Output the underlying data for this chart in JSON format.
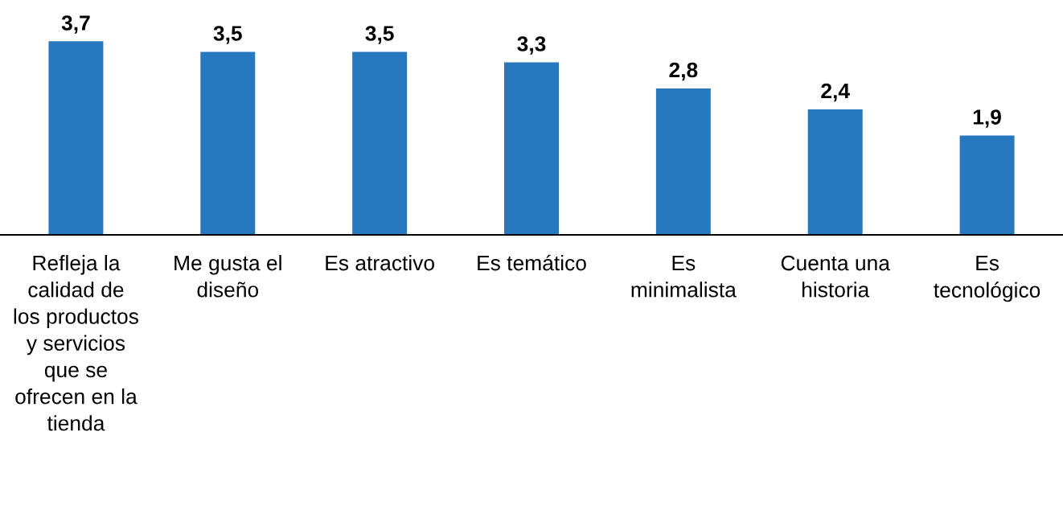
{
  "chart_data": {
    "type": "bar",
    "categories": [
      "Refleja la calidad de los productos y servicios que se ofrecen en la tienda",
      "Me gusta el diseño",
      "Es atractivo",
      "Es temático",
      "Es minimalista",
      "Cuenta una historia",
      "Es tecnológico"
    ],
    "values": [
      3.7,
      3.5,
      3.5,
      3.3,
      2.8,
      2.4,
      1.9
    ],
    "value_labels": [
      "3,7",
      "3,5",
      "3,5",
      "3,3",
      "2,8",
      "2,4",
      "1,9"
    ],
    "color": "#2878c0",
    "grid": false,
    "legend": false
  }
}
